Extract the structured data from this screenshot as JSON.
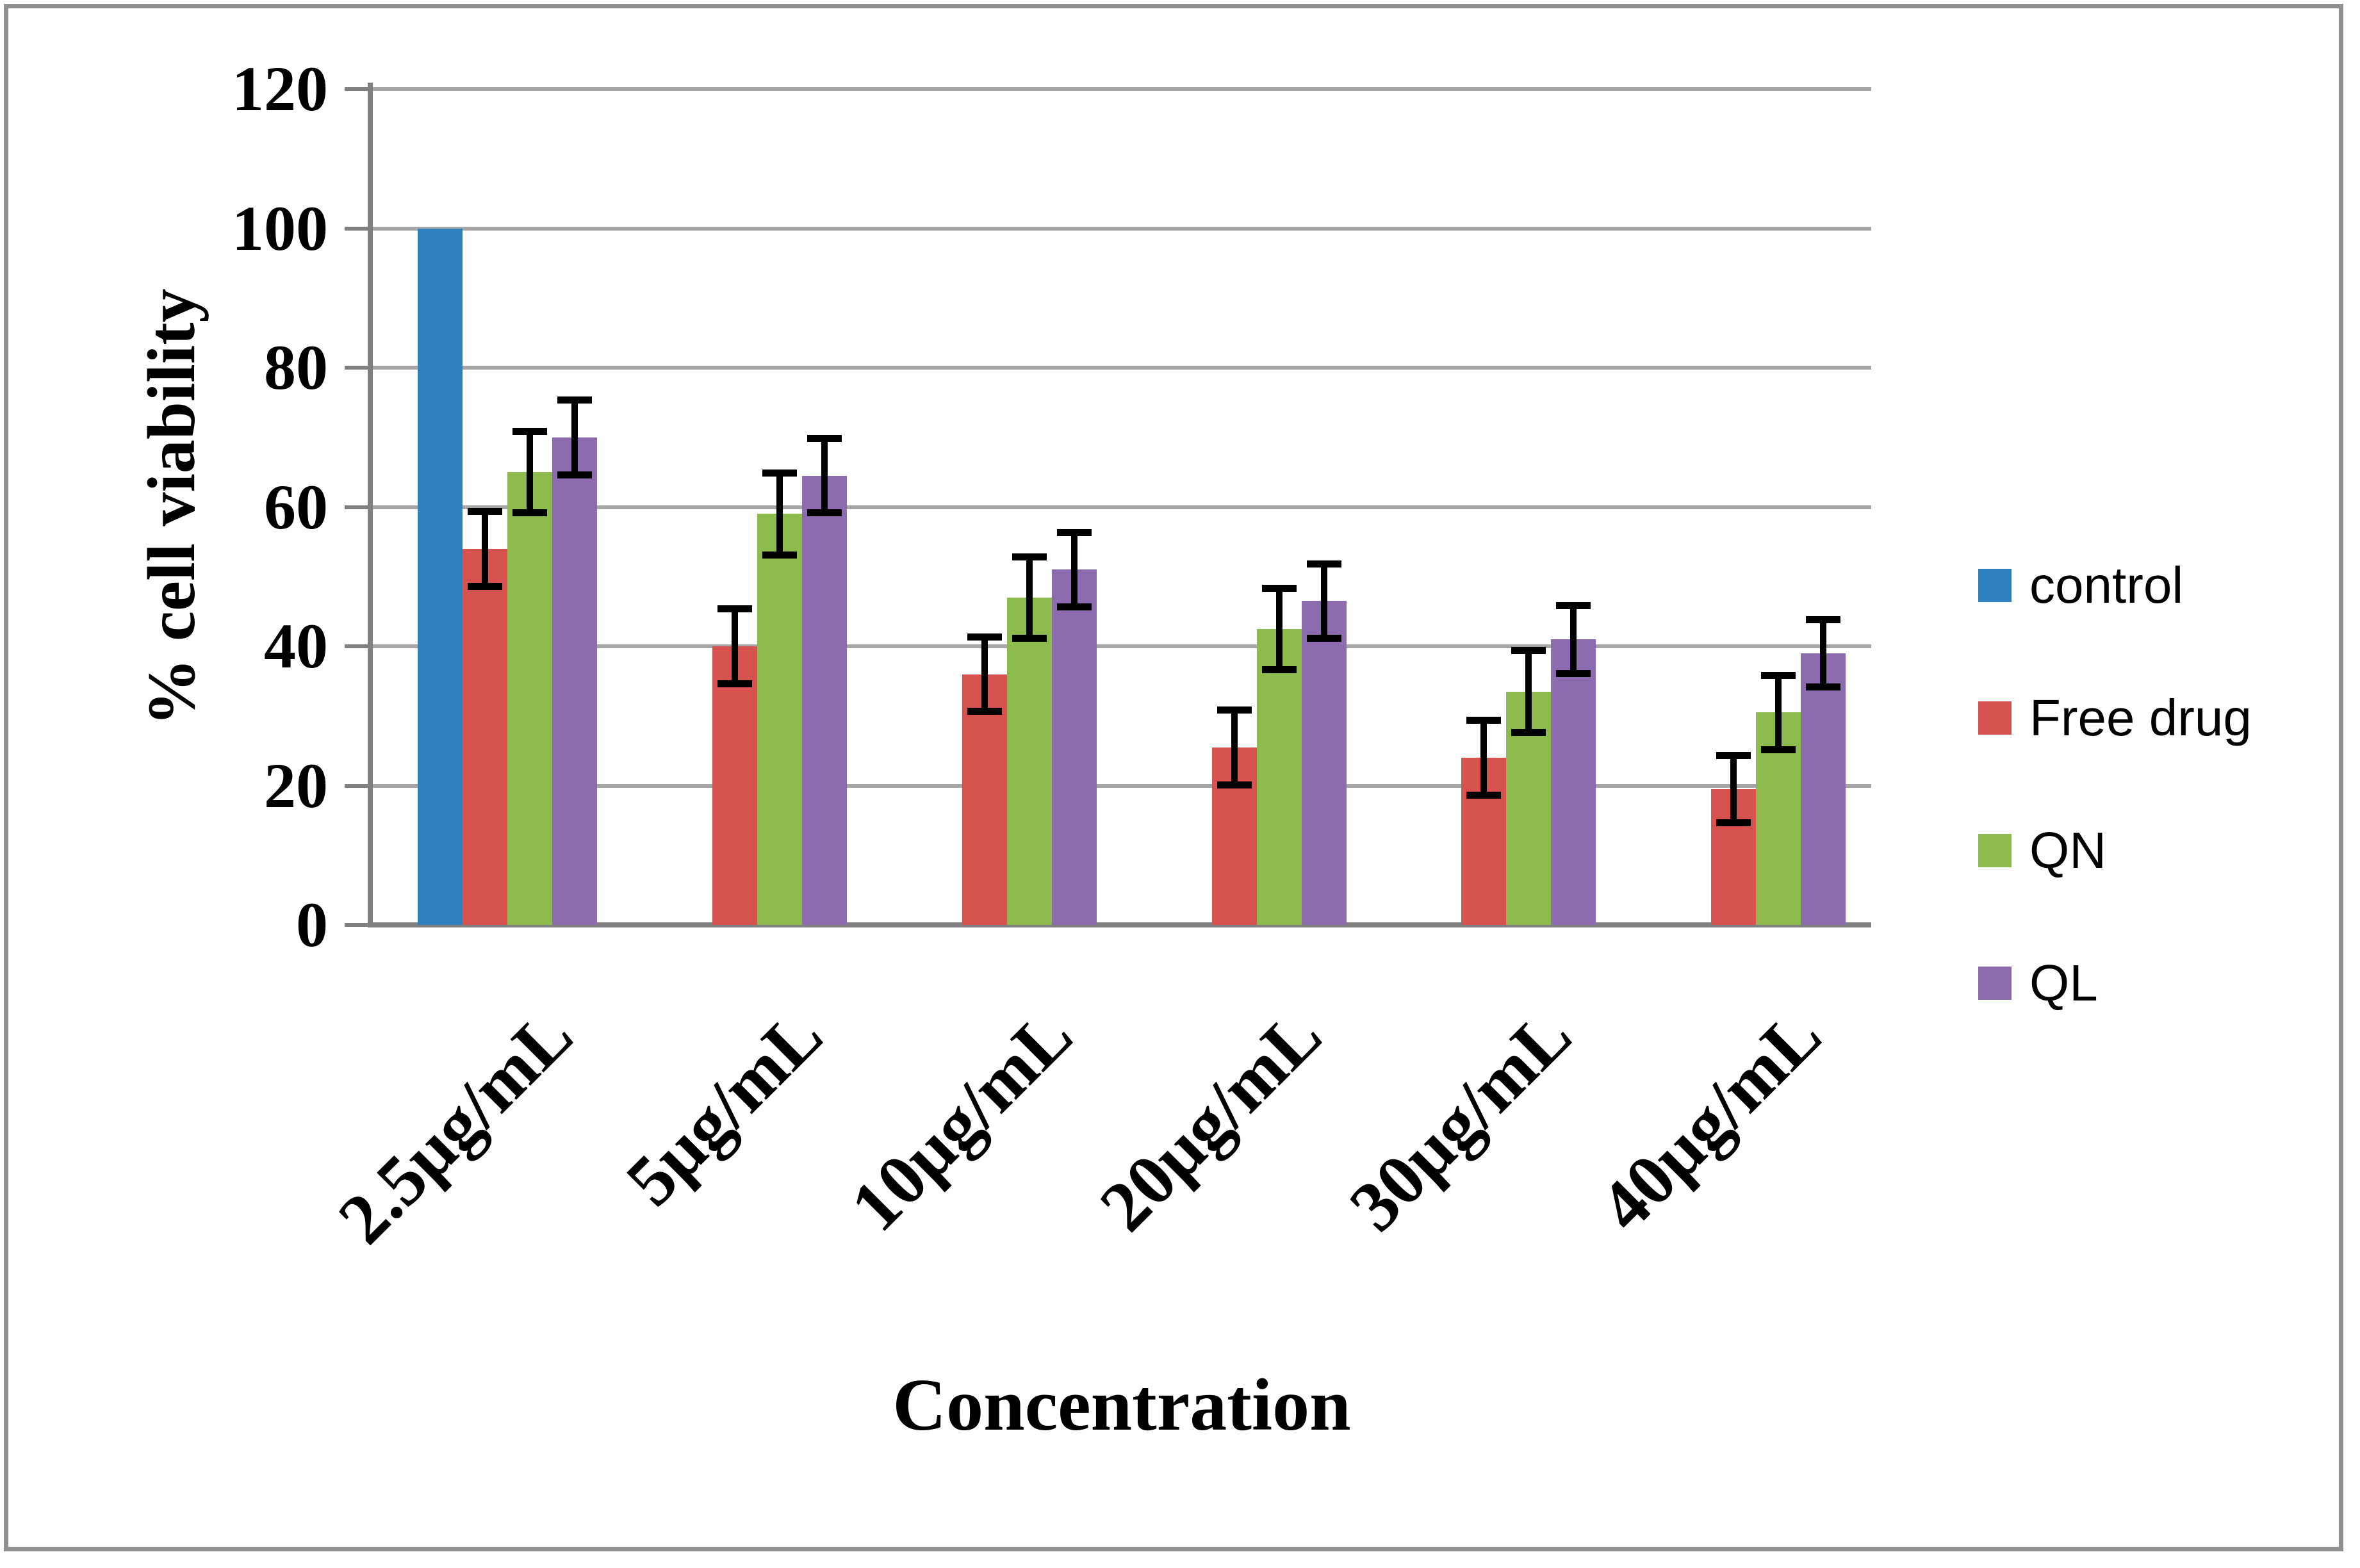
{
  "chart_data": {
    "type": "bar",
    "title": "",
    "xlabel": "Concentration",
    "ylabel": "% cell viability",
    "categories": [
      "2.5µg/mL",
      "5µg/mL",
      "10µg/mL",
      "20µg/mL",
      "30µg/mL",
      "40µg/mL"
    ],
    "series": [
      {
        "name": "control",
        "color": "#2E80BF",
        "values": [
          100,
          null,
          null,
          null,
          null,
          null
        ],
        "errors": [
          null,
          null,
          null,
          null,
          null,
          null
        ]
      },
      {
        "name": "Free drug",
        "color": "#D5524E",
        "values": [
          54,
          40,
          36,
          25.5,
          24,
          19.5
        ],
        "errors": [
          5.5,
          5.5,
          5.5,
          5.5,
          5.5,
          5
        ]
      },
      {
        "name": "QN",
        "color": "#8DBB4D",
        "values": [
          65,
          59,
          47,
          42.5,
          33.5,
          30.5
        ],
        "errors": [
          6,
          6,
          6,
          6,
          6,
          5.5
        ]
      },
      {
        "name": "QL",
        "color": "#8C6BAE",
        "values": [
          70,
          64.5,
          51,
          46.5,
          41,
          39
        ],
        "errors": [
          5.5,
          5.5,
          5.5,
          5.5,
          5,
          5
        ]
      }
    ],
    "ylim": [
      0,
      120
    ],
    "ytick_step": 20,
    "grid": true,
    "error_bars": true,
    "legend_position": "right",
    "gridline_color": "#A6A6A6",
    "axis_color": "#808080",
    "error_bar_color": "#000000"
  }
}
